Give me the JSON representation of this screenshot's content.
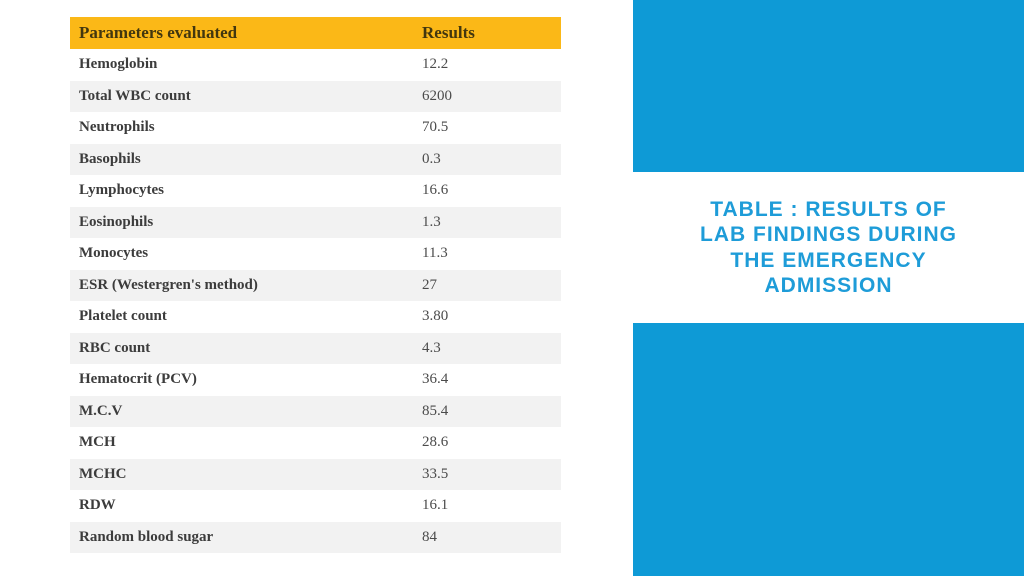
{
  "table": {
    "header": {
      "param_label": "Parameters evaluated",
      "results_label": "Results"
    },
    "header_bg": "#FBB817",
    "header_text_color": "#42370F",
    "stripe_color": "#F2F2F2",
    "rows": [
      {
        "param": "Hemoglobin",
        "value": "12.2"
      },
      {
        "param": "Total WBC count",
        "value": "6200"
      },
      {
        "param": "Neutrophils",
        "value": "70.5"
      },
      {
        "param": "Basophils",
        "value": "0.3"
      },
      {
        "param": "Lymphocytes",
        "value": "16.6"
      },
      {
        "param": "Eosinophils",
        "value": "1.3"
      },
      {
        "param": "Monocytes",
        "value": "11.3"
      },
      {
        "param": "ESR (Westergren's method)",
        "value": "27"
      },
      {
        "param": "Platelet count",
        "value": "3.80"
      },
      {
        "param": "RBC count",
        "value": "4.3"
      },
      {
        "param": "Hematocrit (PCV)",
        "value": "36.4"
      },
      {
        "param": "M.C.V",
        "value": "85.4"
      },
      {
        "param": "MCH",
        "value": "28.6"
      },
      {
        "param": "MCHC",
        "value": "33.5"
      },
      {
        "param": "RDW",
        "value": "16.1"
      },
      {
        "param": "Random blood sugar",
        "value": "84"
      }
    ]
  },
  "right_panel": {
    "accent_color": "#0E9AD6",
    "title_color": "#1E9CD8",
    "title_lines": [
      "TABLE : RESULTS OF",
      "LAB FINDINGS DURING",
      "THE EMERGENCY",
      "ADMISSION"
    ]
  }
}
